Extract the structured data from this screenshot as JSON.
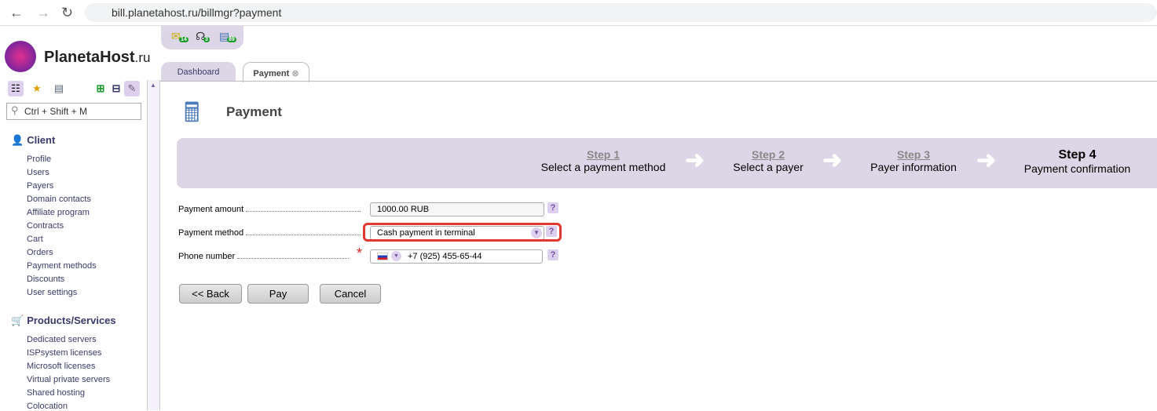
{
  "browser": {
    "url": "bill.planetahost.ru/billmgr?payment"
  },
  "logo": {
    "text": "PlanetaHost",
    "suffix": ".ru"
  },
  "notifications": [
    {
      "icon": "mail-icon",
      "count": "14"
    },
    {
      "icon": "support-icon",
      "count": "3"
    },
    {
      "icon": "tasks-icon",
      "count": "89"
    }
  ],
  "sidebar": {
    "search_placeholder": "Ctrl + Shift + M",
    "sections": [
      {
        "title": "Client",
        "items": [
          "Profile",
          "Users",
          "Payers",
          "Domain contacts",
          "Affiliate program",
          "Contracts",
          "Cart",
          "Orders",
          "Payment methods",
          "Discounts",
          "User settings"
        ]
      },
      {
        "title": "Products/Services",
        "items": [
          "Dedicated servers",
          "ISPsystem licenses",
          "Microsoft licenses",
          "Virtual private servers",
          "Shared hosting",
          "Colocation"
        ]
      }
    ]
  },
  "tabs": [
    {
      "label": "Dashboard"
    },
    {
      "label": "Payment"
    }
  ],
  "page": {
    "title": "Payment"
  },
  "steps": [
    {
      "step": "Step 1",
      "label": "Select a payment method"
    },
    {
      "step": "Step 2",
      "label": "Select a payer"
    },
    {
      "step": "Step 3",
      "label": "Payer information"
    },
    {
      "step": "Step 4",
      "label": "Payment confirmation"
    }
  ],
  "form": {
    "amount_label": "Payment amount",
    "amount": "1000.00 RUB",
    "method_label": "Payment method",
    "method": "Cash payment in terminal",
    "phone_label": "Phone number",
    "phone": "+7 (925) 455-65-44",
    "help": "?"
  },
  "buttons": {
    "back": "<< Back",
    "pay": "Pay",
    "cancel": "Cancel"
  }
}
